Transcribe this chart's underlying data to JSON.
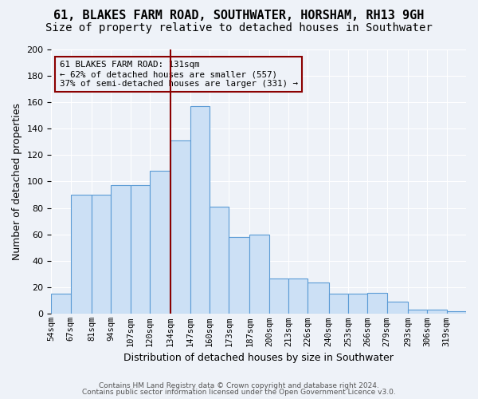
{
  "title": "61, BLAKES FARM ROAD, SOUTHWATER, HORSHAM, RH13 9GH",
  "subtitle": "Size of property relative to detached houses in Southwater",
  "xlabel": "Distribution of detached houses by size in Southwater",
  "ylabel": "Number of detached properties",
  "bar_labels": [
    "54sqm",
    "67sqm",
    "81sqm",
    "94sqm",
    "107sqm",
    "120sqm",
    "134sqm",
    "147sqm",
    "160sqm",
    "173sqm",
    "187sqm",
    "200sqm",
    "213sqm",
    "226sqm",
    "240sqm",
    "253sqm",
    "266sqm",
    "279sqm",
    "293sqm",
    "306sqm",
    "319sqm"
  ],
  "bar_edges": [
    54,
    67,
    81,
    94,
    107,
    120,
    134,
    147,
    160,
    173,
    187,
    200,
    213,
    226,
    240,
    253,
    266,
    279,
    293,
    306,
    319,
    332
  ],
  "bar_heights": [
    15,
    90,
    90,
    97,
    97,
    108,
    131,
    157,
    81,
    58,
    60,
    27,
    27,
    24,
    15,
    15,
    16,
    9,
    3,
    3,
    2
  ],
  "bar_color": "#cce0f5",
  "bar_edge_color": "#5b9bd5",
  "vline_x": 134,
  "vline_color": "#8b0000",
  "annotation_text": "61 BLAKES FARM ROAD: 131sqm\n← 62% of detached houses are smaller (557)\n37% of semi-detached houses are larger (331) →",
  "ylim": [
    0,
    200
  ],
  "yticks": [
    0,
    20,
    40,
    60,
    80,
    100,
    120,
    140,
    160,
    180,
    200
  ],
  "footer1": "Contains HM Land Registry data © Crown copyright and database right 2024.",
  "footer2": "Contains public sector information licensed under the Open Government Licence v3.0.",
  "bg_color": "#eef2f8",
  "grid_color": "#ffffff",
  "title_fontsize": 11,
  "subtitle_fontsize": 10,
  "axis_label_fontsize": 9
}
